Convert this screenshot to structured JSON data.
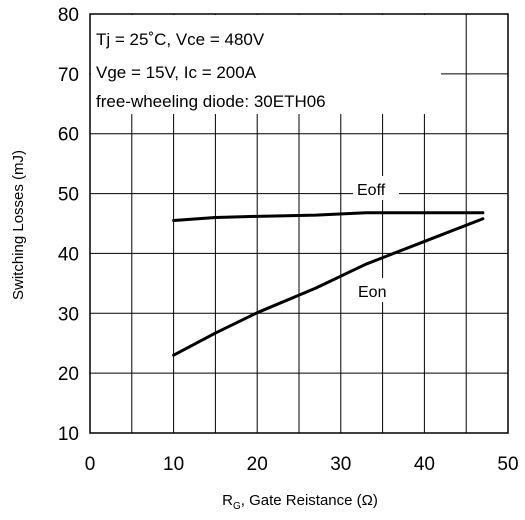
{
  "chart_data": {
    "type": "line",
    "xlabel_main": "R",
    "xlabel_sub": "G",
    "xlabel_rest": ", Gate Reistance (Ω)",
    "ylabel": "Switching Losses (mJ)",
    "xlim": [
      0,
      50
    ],
    "ylim": [
      10,
      80
    ],
    "x_ticks": [
      "0",
      "10",
      "20",
      "30",
      "40",
      "50"
    ],
    "y_ticks": [
      "10",
      "20",
      "30",
      "40",
      "50",
      "60",
      "70",
      "80"
    ],
    "grid": true,
    "annotations": [
      "Tj = 25˚C, Vce = 480V",
      "Vge = 15V, Ic = 200A",
      "free-wheeling diode: 30ETH06"
    ],
    "series": [
      {
        "name": "Eoff",
        "x": [
          10,
          15,
          20,
          27,
          33,
          40,
          47
        ],
        "y": [
          45.5,
          46.0,
          46.2,
          46.4,
          46.8,
          46.8,
          46.8
        ]
      },
      {
        "name": "Eon",
        "x": [
          10,
          15,
          20,
          27,
          33,
          40,
          47
        ],
        "y": [
          23.0,
          26.7,
          30.1,
          34.2,
          38.2,
          42.0,
          45.8
        ]
      }
    ]
  }
}
